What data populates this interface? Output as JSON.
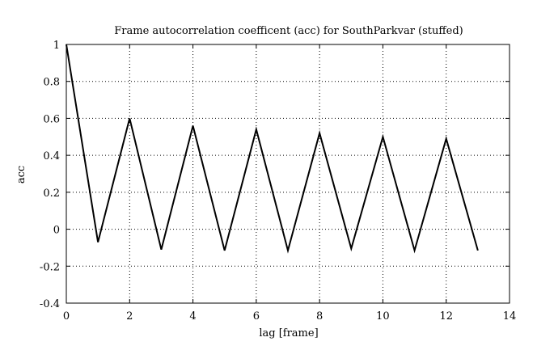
{
  "chart_data": {
    "type": "line",
    "title": "Frame autocorrelation coefficent (acc) for SouthParkvar (stuffed)",
    "xlabel": "lag [frame]",
    "ylabel": "acc",
    "xlim": [
      0,
      14
    ],
    "ylim": [
      -0.4,
      1
    ],
    "xticks": [
      0,
      2,
      4,
      6,
      8,
      10,
      12,
      14
    ],
    "yticks": [
      -0.4,
      -0.2,
      0,
      0.2,
      0.4,
      0.6,
      0.8,
      1
    ],
    "xtick_labels": [
      "0",
      "2",
      "4",
      "6",
      "8",
      "10",
      "12",
      "14"
    ],
    "ytick_labels": [
      "-0.4",
      "-0.2",
      "0",
      "0.2",
      "0.4",
      "0.6",
      "0.8",
      "1"
    ],
    "grid": true,
    "series": [
      {
        "x": [
          0,
          1,
          2,
          3,
          4,
          5,
          6,
          7,
          8,
          9,
          10,
          11,
          12,
          13
        ],
        "y": [
          1.0,
          -0.07,
          0.6,
          -0.11,
          0.56,
          -0.115,
          0.54,
          -0.115,
          0.52,
          -0.105,
          0.5,
          -0.115,
          0.49,
          -0.115
        ],
        "color": "#000000"
      }
    ]
  }
}
